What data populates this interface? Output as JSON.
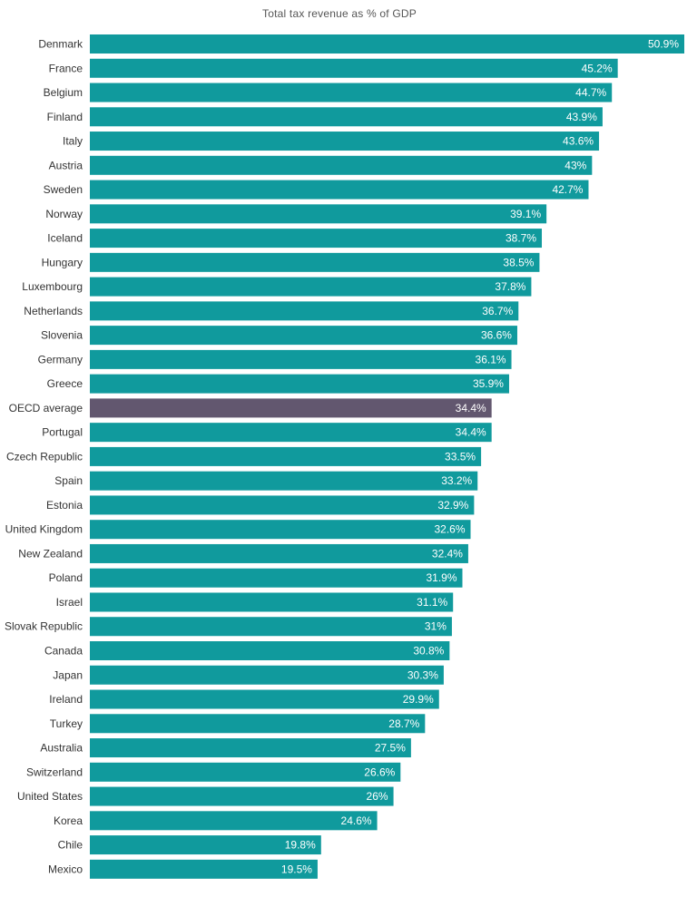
{
  "chart_data": {
    "type": "bar",
    "orientation": "horizontal",
    "title": "Total tax revenue as % of GDP",
    "xlabel": "",
    "ylabel": "",
    "xlim": [
      0,
      50.9
    ],
    "grid": false,
    "legend": "none",
    "value_suffix": "%",
    "categories": [
      "Denmark",
      "France",
      "Belgium",
      "Finland",
      "Italy",
      "Austria",
      "Sweden",
      "Norway",
      "Iceland",
      "Hungary",
      "Luxembourg",
      "Netherlands",
      "Slovenia",
      "Germany",
      "Greece",
      "OECD average",
      "Portugal",
      "Czech Republic",
      "Spain",
      "Estonia",
      "United Kingdom",
      "New Zealand",
      "Poland",
      "Israel",
      "Slovak Republic",
      "Canada",
      "Japan",
      "Ireland",
      "Turkey",
      "Australia",
      "Switzerland",
      "United States",
      "Korea",
      "Chile",
      "Mexico"
    ],
    "values": [
      50.9,
      45.2,
      44.7,
      43.9,
      43.6,
      43,
      42.7,
      39.1,
      38.7,
      38.5,
      37.8,
      36.7,
      36.6,
      36.1,
      35.9,
      34.4,
      34.4,
      33.5,
      33.2,
      32.9,
      32.6,
      32.4,
      31.9,
      31.1,
      31,
      30.8,
      30.3,
      29.9,
      28.7,
      27.5,
      26.6,
      26,
      24.6,
      19.8,
      19.5
    ],
    "data_labels": [
      "50.9%",
      "45.2%",
      "44.7%",
      "43.9%",
      "43.6%",
      "43%",
      "42.7%",
      "39.1%",
      "38.7%",
      "38.5%",
      "37.8%",
      "36.7%",
      "36.6%",
      "36.1%",
      "35.9%",
      "34.4%",
      "34.4%",
      "33.5%",
      "33.2%",
      "32.9%",
      "32.6%",
      "32.4%",
      "31.9%",
      "31.1%",
      "31%",
      "30.8%",
      "30.3%",
      "29.9%",
      "28.7%",
      "27.5%",
      "26.6%",
      "26%",
      "24.6%",
      "19.8%",
      "19.5%"
    ],
    "highlight_category": "OECD average",
    "colors": {
      "bar": "#109a9d",
      "highlight": "#62576f",
      "label": "#ffffff",
      "category_text": "#333333",
      "title_text": "#555555"
    }
  }
}
